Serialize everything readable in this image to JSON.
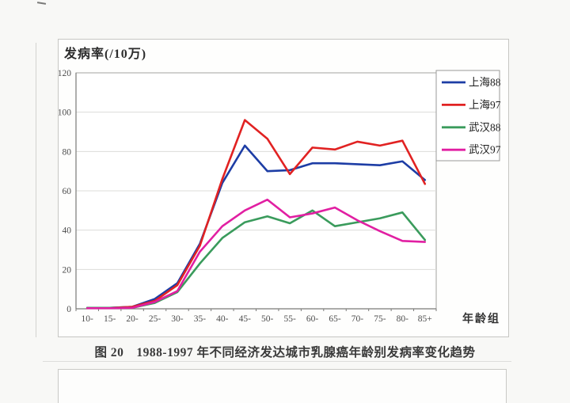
{
  "page": {
    "caption": "图 20　1988-1997 年不同经济发达城市乳腺癌年龄别发病率变化趋势"
  },
  "chart_data": {
    "type": "line",
    "title": "",
    "ylabel": "发病率(/10万)",
    "xlabel": "年龄组",
    "ylim": [
      0,
      120
    ],
    "yticks": [
      0,
      20,
      40,
      60,
      80,
      100,
      120
    ],
    "grid": "horizontal",
    "legend_position": "top-right-outside",
    "categories": [
      "10-",
      "15-",
      "20-",
      "25-",
      "30-",
      "35-",
      "40-",
      "45-",
      "50-",
      "55-",
      "60-",
      "65-",
      "70-",
      "75-",
      "80-",
      "85+"
    ],
    "series": [
      {
        "name": "上海88",
        "color": "#1d3da5",
        "values": [
          0.5,
          0.5,
          1,
          5,
          13,
          33,
          64,
          83,
          70,
          70.5,
          74,
          74,
          73.5,
          73,
          75,
          65.5
        ]
      },
      {
        "name": "上海97",
        "color": "#e12222",
        "values": [
          0.3,
          0.5,
          1,
          4,
          12,
          32,
          66,
          96,
          86.5,
          68.5,
          82,
          81,
          85,
          83,
          85.5,
          63.5
        ]
      },
      {
        "name": "武汉88",
        "color": "#3a9b5c",
        "values": [
          0.5,
          0.5,
          0.5,
          3,
          8.5,
          23,
          36,
          44,
          47,
          43.5,
          50,
          42,
          44,
          46,
          49,
          35
        ]
      },
      {
        "name": "武汉97",
        "color": "#e11fa2",
        "values": [
          0.3,
          0.3,
          0.5,
          3.5,
          9,
          29,
          42,
          50,
          55.5,
          46.5,
          48.5,
          51.5,
          45,
          39.5,
          34.5,
          34
        ]
      }
    ]
  },
  "style_colors": {
    "plot_border": "#a3a3a0",
    "grid_line": "#dcdcda",
    "axis_line": "#7a7a78",
    "legend_border": "#9a9a98"
  }
}
